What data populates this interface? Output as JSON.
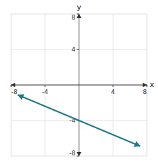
{
  "chart_data": {
    "type": "line",
    "xlabel": "x",
    "ylabel": "y",
    "x": [
      -7.2,
      7.2
    ],
    "values": [
      -1.12,
      -6.88
    ],
    "color": "#1f7a8c",
    "xlim": [
      -8,
      8
    ],
    "ylim": [
      -8,
      8
    ],
    "xticks": [
      -8,
      -4,
      4,
      8
    ],
    "yticks": [
      -8,
      -4,
      4,
      8
    ],
    "grid": true
  }
}
